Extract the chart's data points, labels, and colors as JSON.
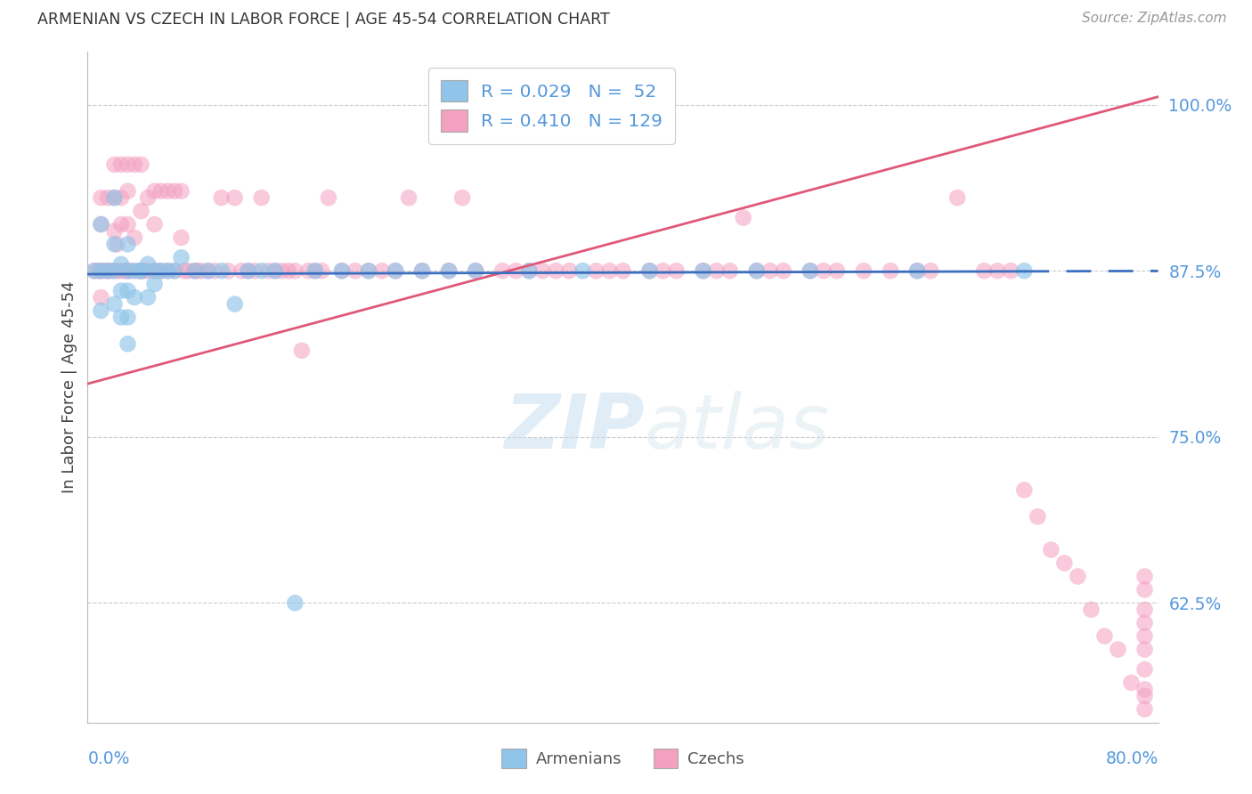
{
  "title": "ARMENIAN VS CZECH IN LABOR FORCE | AGE 45-54 CORRELATION CHART",
  "source": "Source: ZipAtlas.com",
  "ylabel": "In Labor Force | Age 45-54",
  "yticks": [
    0.625,
    0.75,
    0.875,
    1.0
  ],
  "ytick_labels": [
    "62.5%",
    "75.0%",
    "87.5%",
    "100.0%"
  ],
  "xmin": 0.0,
  "xmax": 0.8,
  "ymin": 0.535,
  "ymax": 1.04,
  "r_armenians": 0.029,
  "n_armenians": 52,
  "r_czechs": 0.41,
  "n_czechs": 129,
  "blue_color": "#90C4E8",
  "pink_color": "#F4A0C0",
  "blue_line_color": "#3B6FBF",
  "pink_line_color": "#E05878",
  "axis_label_color": "#5599DD",
  "watermark_color": "#C8DFF0",
  "background_color": "#FFFFFF",
  "armenians_x": [
    0.005,
    0.01,
    0.01,
    0.01,
    0.015,
    0.02,
    0.02,
    0.02,
    0.02,
    0.025,
    0.025,
    0.025,
    0.03,
    0.03,
    0.03,
    0.03,
    0.03,
    0.035,
    0.035,
    0.04,
    0.04,
    0.045,
    0.045,
    0.05,
    0.05,
    0.055,
    0.06,
    0.065,
    0.07,
    0.08,
    0.09,
    0.1,
    0.11,
    0.12,
    0.13,
    0.14,
    0.155,
    0.17,
    0.19,
    0.21,
    0.23,
    0.25,
    0.27,
    0.29,
    0.33,
    0.37,
    0.42,
    0.46,
    0.5,
    0.54,
    0.62,
    0.7
  ],
  "armenians_y": [
    0.875,
    0.91,
    0.875,
    0.845,
    0.875,
    0.93,
    0.895,
    0.875,
    0.85,
    0.88,
    0.86,
    0.84,
    0.895,
    0.875,
    0.86,
    0.84,
    0.82,
    0.875,
    0.855,
    0.875,
    0.875,
    0.88,
    0.855,
    0.875,
    0.865,
    0.875,
    0.875,
    0.875,
    0.885,
    0.875,
    0.875,
    0.875,
    0.85,
    0.875,
    0.875,
    0.875,
    0.625,
    0.875,
    0.875,
    0.875,
    0.875,
    0.875,
    0.875,
    0.875,
    0.875,
    0.875,
    0.875,
    0.875,
    0.875,
    0.875,
    0.875,
    0.875
  ],
  "czechs_x": [
    0.005,
    0.008,
    0.01,
    0.01,
    0.01,
    0.01,
    0.013,
    0.015,
    0.015,
    0.018,
    0.02,
    0.02,
    0.02,
    0.022,
    0.022,
    0.025,
    0.025,
    0.025,
    0.025,
    0.028,
    0.03,
    0.03,
    0.03,
    0.03,
    0.032,
    0.035,
    0.035,
    0.038,
    0.04,
    0.04,
    0.04,
    0.042,
    0.045,
    0.045,
    0.05,
    0.05,
    0.05,
    0.052,
    0.055,
    0.055,
    0.06,
    0.06,
    0.065,
    0.065,
    0.07,
    0.07,
    0.072,
    0.075,
    0.08,
    0.082,
    0.085,
    0.09,
    0.095,
    0.1,
    0.105,
    0.11,
    0.115,
    0.12,
    0.125,
    0.13,
    0.135,
    0.14,
    0.145,
    0.15,
    0.155,
    0.16,
    0.165,
    0.17,
    0.175,
    0.18,
    0.19,
    0.2,
    0.21,
    0.22,
    0.23,
    0.24,
    0.25,
    0.27,
    0.28,
    0.29,
    0.31,
    0.32,
    0.33,
    0.34,
    0.35,
    0.36,
    0.38,
    0.39,
    0.4,
    0.42,
    0.43,
    0.44,
    0.46,
    0.47,
    0.48,
    0.49,
    0.5,
    0.51,
    0.52,
    0.54,
    0.55,
    0.56,
    0.58,
    0.6,
    0.62,
    0.63,
    0.65,
    0.67,
    0.68,
    0.69,
    0.7,
    0.71,
    0.72,
    0.73,
    0.74,
    0.75,
    0.76,
    0.77,
    0.78,
    0.79,
    0.79,
    0.79,
    0.79,
    0.79,
    0.79,
    0.79,
    0.79,
    0.79,
    0.79
  ],
  "czechs_y": [
    0.875,
    0.875,
    0.93,
    0.91,
    0.875,
    0.855,
    0.875,
    0.93,
    0.875,
    0.875,
    0.955,
    0.93,
    0.905,
    0.895,
    0.875,
    0.955,
    0.93,
    0.91,
    0.875,
    0.875,
    0.955,
    0.935,
    0.91,
    0.875,
    0.875,
    0.955,
    0.9,
    0.875,
    0.955,
    0.92,
    0.875,
    0.875,
    0.93,
    0.875,
    0.935,
    0.91,
    0.875,
    0.875,
    0.935,
    0.875,
    0.935,
    0.875,
    0.935,
    0.875,
    0.935,
    0.9,
    0.875,
    0.875,
    0.875,
    0.875,
    0.875,
    0.875,
    0.875,
    0.93,
    0.875,
    0.93,
    0.875,
    0.875,
    0.875,
    0.93,
    0.875,
    0.875,
    0.875,
    0.875,
    0.875,
    0.815,
    0.875,
    0.875,
    0.875,
    0.93,
    0.875,
    0.875,
    0.875,
    0.875,
    0.875,
    0.93,
    0.875,
    0.875,
    0.93,
    0.875,
    0.875,
    0.875,
    0.875,
    0.875,
    0.875,
    0.875,
    0.875,
    0.875,
    0.875,
    0.875,
    0.875,
    0.875,
    0.875,
    0.875,
    0.875,
    0.915,
    0.875,
    0.875,
    0.875,
    0.875,
    0.875,
    0.875,
    0.875,
    0.875,
    0.875,
    0.875,
    0.93,
    0.875,
    0.875,
    0.875,
    0.71,
    0.69,
    0.665,
    0.655,
    0.645,
    0.62,
    0.6,
    0.59,
    0.565,
    0.555,
    0.545,
    0.56,
    0.575,
    0.59,
    0.6,
    0.61,
    0.62,
    0.635,
    0.645
  ]
}
